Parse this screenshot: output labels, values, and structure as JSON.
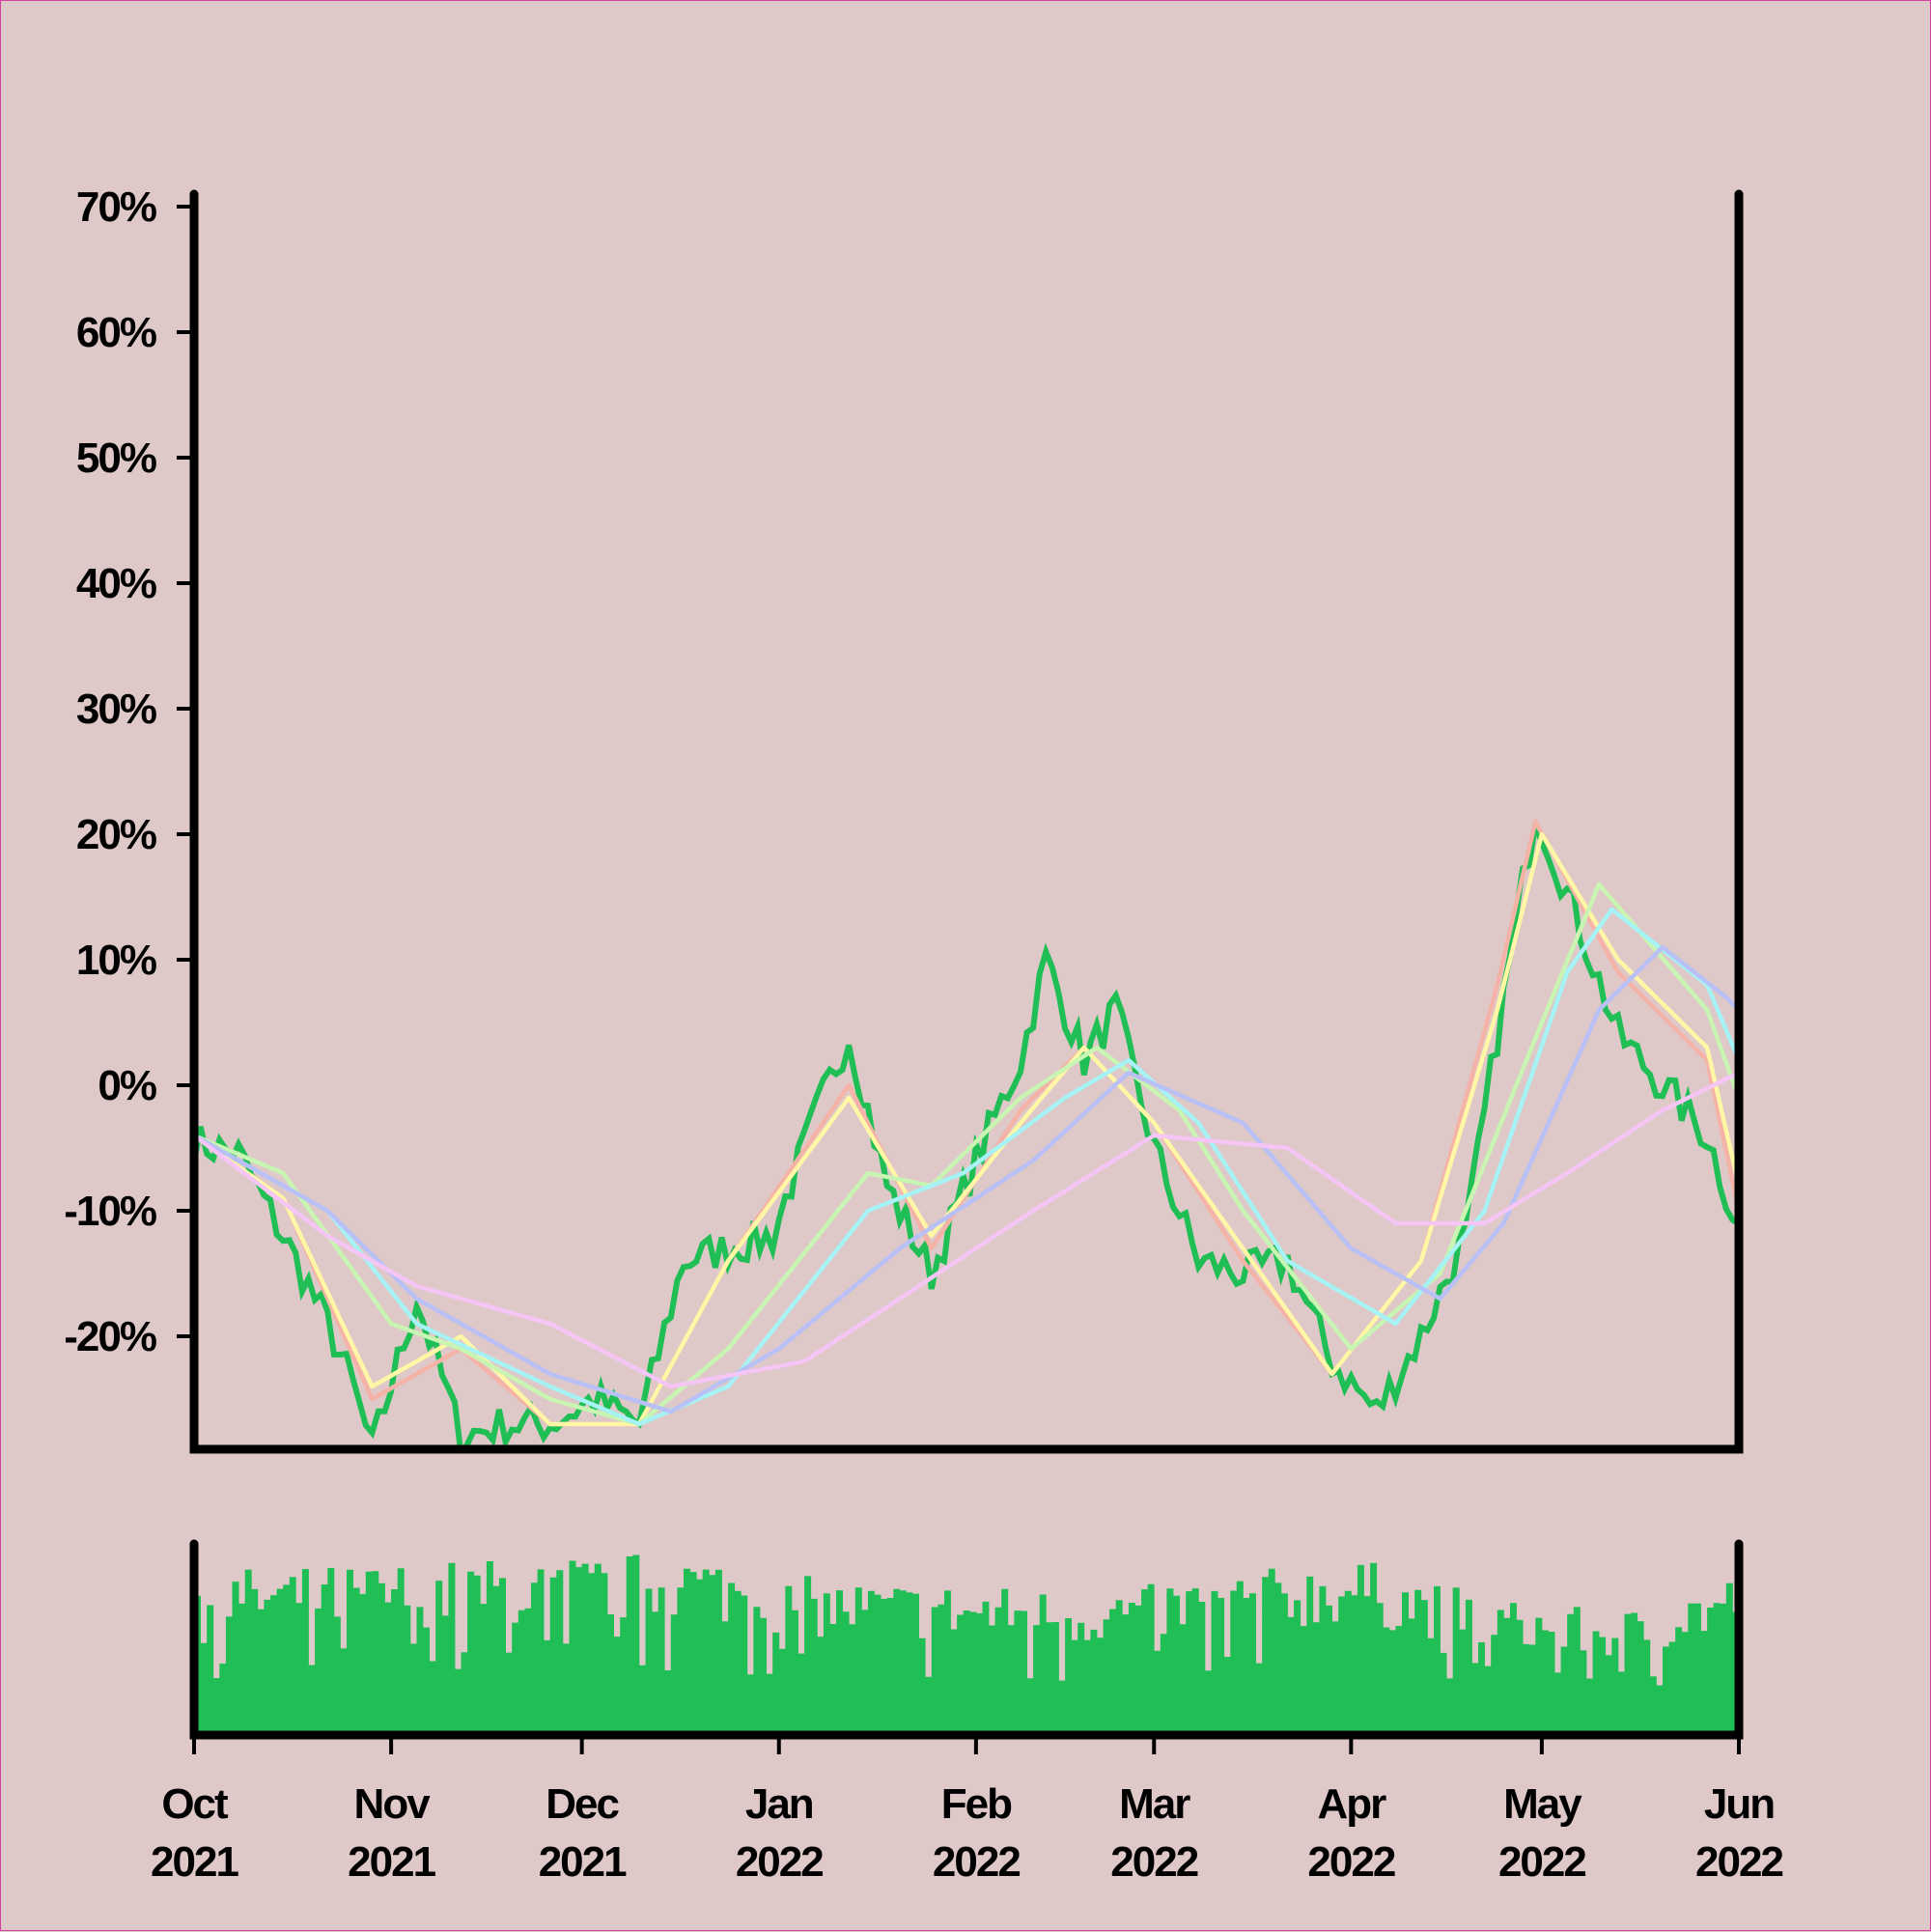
{
  "chart_data": {
    "type": "line",
    "title": "",
    "xlabel": "",
    "ylabel": "",
    "y_ticks": [
      "70%",
      "60%",
      "50%",
      "40%",
      "30%",
      "20%",
      "10%",
      "0%",
      "-10%",
      "-20%"
    ],
    "y_tick_values": [
      70,
      60,
      50,
      40,
      30,
      20,
      10,
      0,
      -10,
      -20
    ],
    "ylim": [
      -29,
      71
    ],
    "x_ticks": [
      {
        "date": "2021-10-01",
        "month": "Oct",
        "year": "2021"
      },
      {
        "date": "2021-11-01",
        "month": "Nov",
        "year": "2021"
      },
      {
        "date": "2021-12-01",
        "month": "Dec",
        "year": "2021"
      },
      {
        "date": "2022-01-01",
        "month": "Jan",
        "year": "2022"
      },
      {
        "date": "2022-02-01",
        "month": "Feb",
        "year": "2022"
      },
      {
        "date": "2022-03-01",
        "month": "Mar",
        "year": "2022"
      },
      {
        "date": "2022-04-01",
        "month": "Apr",
        "year": "2022"
      },
      {
        "date": "2022-05-01",
        "month": "May",
        "year": "2022"
      },
      {
        "date": "2022-06-01",
        "month": "Jun",
        "year": "2022"
      }
    ],
    "xlim": [
      "2021-10-01",
      "2022-06-01"
    ],
    "grid": false,
    "legend": "none",
    "colors": {
      "background": "#dfc8c8",
      "price": "#1fbf55",
      "volume": "#1fbf55",
      "axis": "#000000",
      "ma_5": "#f5b3a8",
      "ma_10": "#fff6a6",
      "ma_20": "#c9f5b3",
      "ma_30": "#a6f2f5",
      "ma_60": "#b8c0f5",
      "ma_90": "#f5c6f5"
    },
    "price_series": {
      "x": [
        "2021-10-01",
        "2021-10-08",
        "2021-10-15",
        "2021-10-22",
        "2021-10-26",
        "2021-10-29",
        "2021-11-05",
        "2021-11-12",
        "2021-11-19",
        "2021-11-26",
        "2021-12-03",
        "2021-12-10",
        "2021-12-17",
        "2021-12-24",
        "2021-12-31",
        "2022-01-07",
        "2022-01-12",
        "2022-01-18",
        "2022-01-25",
        "2022-02-01",
        "2022-02-08",
        "2022-02-12",
        "2022-02-18",
        "2022-02-23",
        "2022-03-01",
        "2022-03-08",
        "2022-03-15",
        "2022-03-22",
        "2022-03-29",
        "2022-04-05",
        "2022-04-12",
        "2022-04-19",
        "2022-04-24",
        "2022-04-30",
        "2022-05-06",
        "2022-05-13",
        "2022-05-20",
        "2022-05-27",
        "2022-06-01"
      ],
      "y": [
        -4.5,
        -5.5,
        -12,
        -19,
        -24,
        -29,
        -17,
        -28,
        -27,
        -27,
        -25,
        -27,
        -14,
        -13,
        -12,
        -2,
        4,
        -8,
        -15,
        -6,
        2,
        10,
        2,
        6,
        -5,
        -14,
        -15,
        -14,
        -22,
        -26,
        -20,
        -12,
        4,
        22,
        14,
        4,
        0,
        -4,
        -11.5
      ]
    },
    "moving_averages": [
      {
        "window": 5,
        "x": [
          "2021-10-01",
          "2021-10-15",
          "2021-10-29",
          "2021-11-12",
          "2021-11-26",
          "2021-12-10",
          "2021-12-24",
          "2022-01-12",
          "2022-01-25",
          "2022-02-08",
          "2022-02-18",
          "2022-03-01",
          "2022-03-15",
          "2022-03-29",
          "2022-04-12",
          "2022-04-24",
          "2022-04-30",
          "2022-05-13",
          "2022-05-27",
          "2022-06-01"
        ],
        "y": [
          -4,
          -9,
          -25,
          -21,
          -27,
          -27,
          -14,
          0,
          -13,
          -2,
          3,
          -3,
          -14,
          -23,
          -14,
          8,
          21,
          9,
          2,
          -10
        ]
      },
      {
        "window": 10,
        "x": [
          "2021-10-01",
          "2021-10-15",
          "2021-10-29",
          "2021-11-12",
          "2021-11-26",
          "2021-12-10",
          "2021-12-24",
          "2022-01-12",
          "2022-01-25",
          "2022-02-08",
          "2022-02-18",
          "2022-03-01",
          "2022-03-15",
          "2022-03-29",
          "2022-04-12",
          "2022-04-24",
          "2022-05-01",
          "2022-05-13",
          "2022-05-27",
          "2022-06-01"
        ],
        "y": [
          -4,
          -9,
          -24,
          -20,
          -27,
          -27,
          -14,
          -1,
          -12,
          -3,
          3,
          -3,
          -13,
          -23,
          -14,
          6,
          20,
          10,
          3,
          -8
        ]
      },
      {
        "window": 20,
        "x": [
          "2021-10-01",
          "2021-10-15",
          "2021-11-01",
          "2021-11-12",
          "2021-11-26",
          "2021-12-10",
          "2021-12-24",
          "2022-01-15",
          "2022-01-25",
          "2022-02-08",
          "2022-02-20",
          "2022-03-05",
          "2022-03-15",
          "2022-04-01",
          "2022-04-15",
          "2022-05-01",
          "2022-05-10",
          "2022-05-27",
          "2022-06-01"
        ],
        "y": [
          -4,
          -7,
          -19,
          -21,
          -25,
          -27,
          -21,
          -7,
          -8,
          -1,
          3,
          -2,
          -10,
          -21,
          -15,
          5,
          16,
          6,
          -1
        ]
      },
      {
        "window": 30,
        "x": [
          "2021-10-01",
          "2021-10-22",
          "2021-11-05",
          "2021-11-26",
          "2021-12-10",
          "2021-12-24",
          "2022-01-15",
          "2022-01-30",
          "2022-02-15",
          "2022-02-25",
          "2022-03-08",
          "2022-03-22",
          "2022-04-08",
          "2022-04-22",
          "2022-05-05",
          "2022-05-12",
          "2022-05-27",
          "2022-06-01"
        ],
        "y": [
          -4,
          -10,
          -19,
          -24,
          -27,
          -24,
          -10,
          -7,
          -1,
          2,
          -3,
          -14,
          -19,
          -10,
          9,
          14,
          8,
          2
        ]
      },
      {
        "window": 60,
        "x": [
          "2021-10-01",
          "2021-10-22",
          "2021-11-05",
          "2021-11-26",
          "2021-12-15",
          "2022-01-01",
          "2022-01-20",
          "2022-02-10",
          "2022-02-25",
          "2022-03-15",
          "2022-04-01",
          "2022-04-15",
          "2022-04-25",
          "2022-05-10",
          "2022-05-20",
          "2022-05-30",
          "2022-06-01"
        ],
        "y": [
          -4,
          -10,
          -17,
          -23,
          -26,
          -21,
          -13,
          -6,
          1,
          -3,
          -13,
          -17,
          -11,
          6,
          11,
          7,
          6
        ]
      },
      {
        "window": 90,
        "x": [
          "2021-10-01",
          "2021-10-22",
          "2021-11-05",
          "2021-11-26",
          "2021-12-15",
          "2022-01-05",
          "2022-01-20",
          "2022-02-10",
          "2022-03-01",
          "2022-03-22",
          "2022-04-08",
          "2022-04-22",
          "2022-05-05",
          "2022-05-20",
          "2022-06-01"
        ],
        "y": [
          -4,
          -12,
          -16,
          -19,
          -24,
          -22,
          -17,
          -10,
          -4,
          -5,
          -11,
          -11,
          -7,
          -2,
          1
        ]
      }
    ],
    "volume": {
      "x": [
        "2021-10-15",
        "2021-11-05",
        "2021-11-26",
        "2021-12-17",
        "2022-01-07",
        "2022-01-28",
        "2022-02-18",
        "2022-03-11",
        "2022-04-01",
        "2022-04-22",
        "2022-05-13",
        "2022-06-01"
      ],
      "y": [
        0.75,
        0.78,
        0.8,
        0.83,
        0.7,
        0.68,
        0.65,
        0.72,
        0.8,
        0.62,
        0.55,
        0.74
      ]
    }
  }
}
